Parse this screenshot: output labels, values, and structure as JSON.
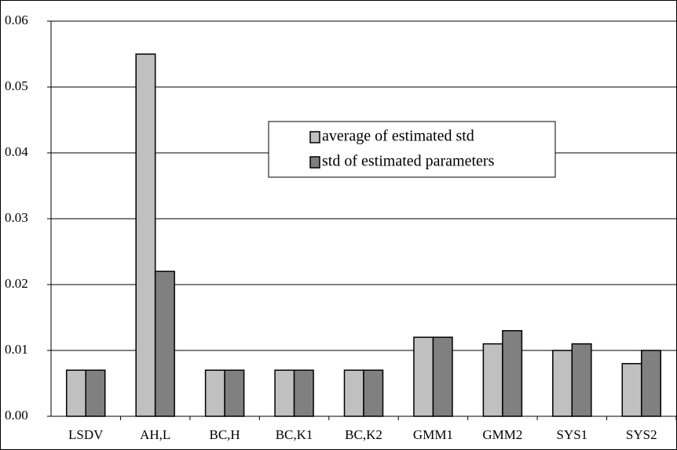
{
  "chart_data": {
    "type": "bar",
    "categories": [
      "LSDV",
      "AH,L",
      "BC,H",
      "BC,K1",
      "BC,K2",
      "GMM1",
      "GMM2",
      "SYS1",
      "SYS2"
    ],
    "series": [
      {
        "name": "average of estimated std",
        "color": "#c0c0c0",
        "values": [
          0.007,
          0.055,
          0.007,
          0.007,
          0.007,
          0.012,
          0.011,
          0.01,
          0.008
        ]
      },
      {
        "name": "std of estimated parameters",
        "color": "#808080",
        "values": [
          0.007,
          0.022,
          0.007,
          0.007,
          0.007,
          0.012,
          0.013,
          0.011,
          0.01
        ]
      }
    ],
    "ylim": [
      0,
      0.06
    ],
    "yticks": [
      {
        "value": 0,
        "label": "0.00"
      },
      0.01,
      0.02,
      0.03,
      0.04,
      0.05,
      0.06
    ],
    "grid": true
  }
}
